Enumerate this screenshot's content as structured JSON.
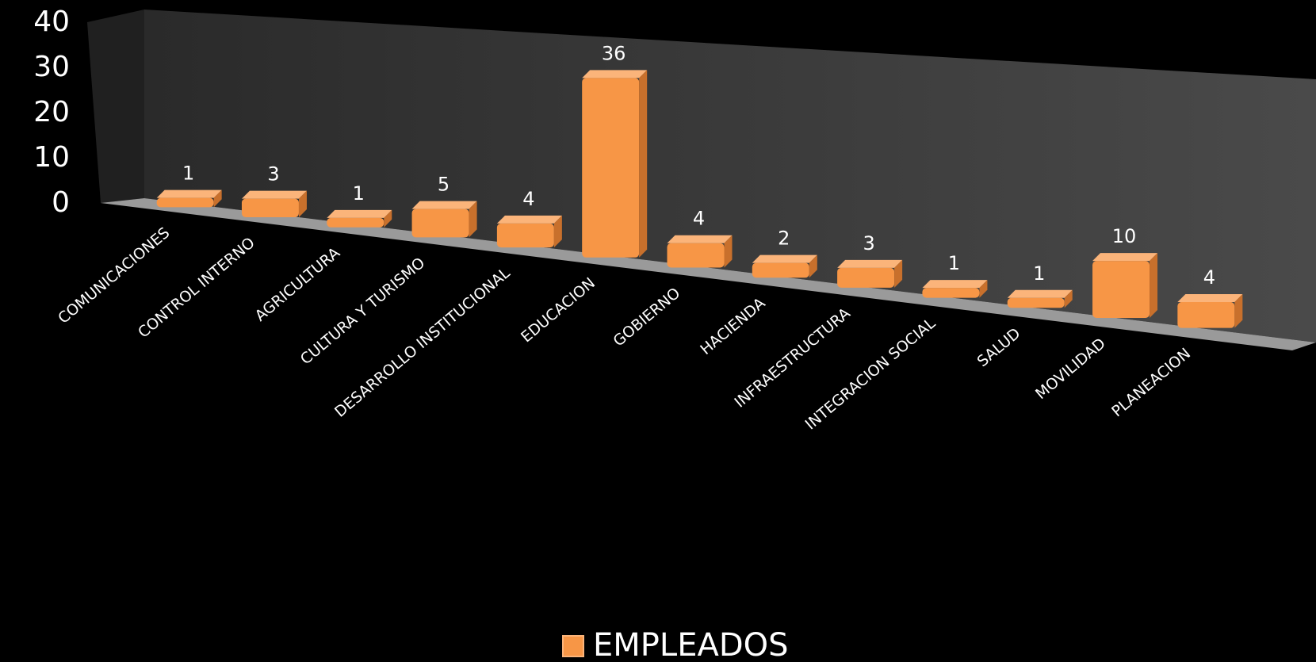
{
  "chart_data": {
    "type": "bar",
    "categories": [
      "COMUNICACIONES",
      "CONTROL INTERNO",
      "AGRICULTURA",
      "CULTURA Y TURISMO",
      "DESARROLLO INSTITUCIONAL",
      "EDUCACION",
      "GOBIERNO",
      "HACIENDA",
      "INFRAESTRUCTURA",
      "INTEGRACION SOCIAL",
      "SALUD",
      "MOVILIDAD",
      "PLANEACION"
    ],
    "series": [
      {
        "name": "EMPLEADOS",
        "color": "#f79646",
        "values": [
          1,
          3,
          1,
          5,
          4,
          36,
          4,
          2,
          3,
          1,
          1,
          10,
          4
        ]
      }
    ],
    "ylim": [
      0,
      40
    ],
    "yticks": [
      0,
      10,
      20,
      30,
      40
    ],
    "legend": "bottom"
  }
}
